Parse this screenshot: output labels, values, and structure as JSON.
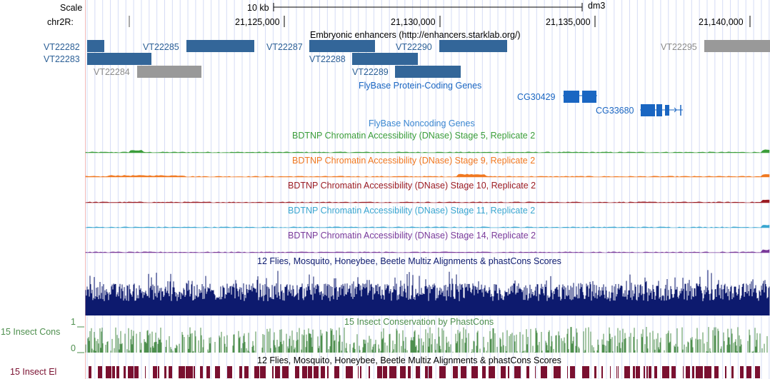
{
  "scale": {
    "label": "Scale",
    "bar_text": "10 kb",
    "assembly": "dm3"
  },
  "position": {
    "chrom_label": "chr2R:",
    "ticks": [
      "21,125,000",
      "21,130,000",
      "21,135,000",
      "21,140,000"
    ]
  },
  "tracks": {
    "enhancers": {
      "title": "Embryonic enhancers (http://enhancers.starklab.org/)",
      "items": [
        "VT22282",
        "VT22283",
        "VT22284",
        "VT22285",
        "VT22287",
        "VT22288",
        "VT22289",
        "VT22290",
        "VT22295"
      ]
    },
    "protein_coding": {
      "title": "FlyBase Protein-Coding Genes",
      "genes": [
        "CG30429",
        "CG33680"
      ]
    },
    "noncoding": {
      "title": "FlyBase Noncoding Genes"
    },
    "dnase": [
      {
        "title": "BDTNP Chromatin Accessibility (DNase) Stage 5, Replicate 2",
        "color": "#3a9d3a"
      },
      {
        "title": "BDTNP Chromatin Accessibility (DNase) Stage 9, Replicate 2",
        "color": "#f07820"
      },
      {
        "title": "BDTNP Chromatin Accessibility (DNase) Stage 10, Replicate 2",
        "color": "#9b1c24"
      },
      {
        "title": "BDTNP Chromatin Accessibility (DNase) Stage 11, Replicate 2",
        "color": "#3aa6d0"
      },
      {
        "title": "BDTNP Chromatin Accessibility (DNase) Stage 14, Replicate 2",
        "color": "#7a3a9a"
      }
    ],
    "multiz": {
      "title": "12 Flies, Mosquito, Honeybee, Beetle Multiz Alignments & phastCons Scores",
      "color": "#0d1a6e"
    },
    "cons": {
      "title": "15 Insect Conservation by PhastCons",
      "side_label": "15 Insect Cons",
      "y_max": "1",
      "y_min": "0",
      "color": "#4e8f4e"
    },
    "elements": {
      "title": "12 Flies, Mosquito, Honeybee, Beetle Multiz Alignments & phastCons Scores",
      "side_label": "15 Insect El",
      "color": "#7a1030"
    }
  }
}
